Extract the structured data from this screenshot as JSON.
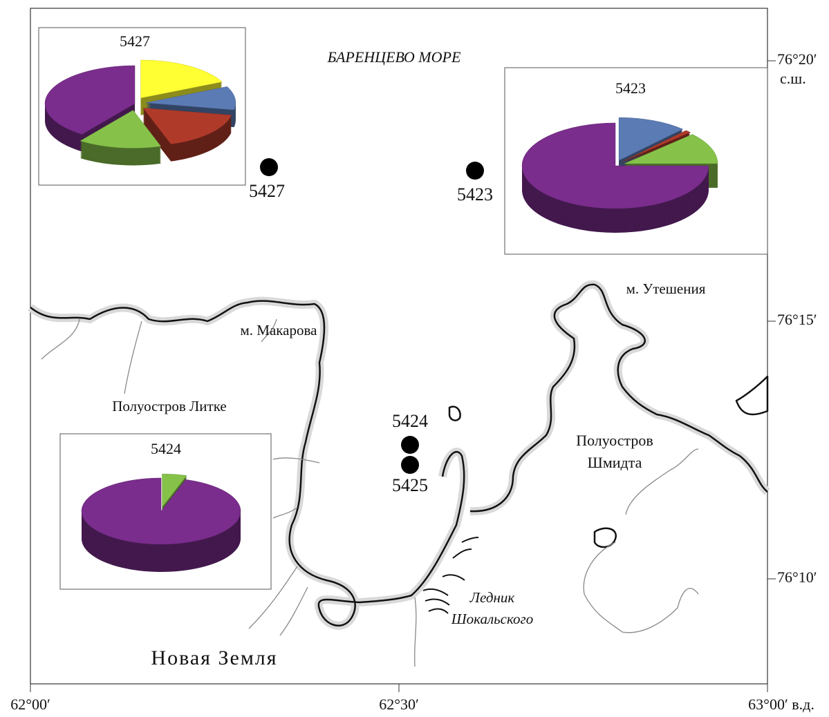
{
  "sea_label": "БАРЕНЦЕВО МОРЕ",
  "region_label": "Новая Земля",
  "place_labels": {
    "cape_makarov": "м. Макарова",
    "litke": "Полуостров Литке",
    "cape_uteshenia": "м. Утешения",
    "schmidt": [
      "Полуостров",
      "Шмидта"
    ],
    "glacier": [
      "Ледник",
      "Шокальского"
    ]
  },
  "longitude_labels": [
    "62°00′",
    "62°30′",
    "63°00′ в.д."
  ],
  "latitude_labels": [
    "76°20′",
    "76°15′",
    "76°10′"
  ],
  "latitude_unit": "с.ш.",
  "stations": [
    "5427",
    "5423",
    "5424",
    "5425"
  ],
  "insets": [
    {
      "station": "5427",
      "values": [
        18,
        10,
        17,
        15,
        40
      ],
      "colors": [
        "#ffff33",
        "#5b7bb5",
        "#b03a2a",
        "#86c24a",
        "#7a2d8c"
      ]
    },
    {
      "station": "5423",
      "values": [
        12,
        1,
        12,
        75
      ],
      "colors": [
        "#5b7bb5",
        "#b03a2a",
        "#86c24a",
        "#7a2d8c"
      ]
    },
    {
      "station": "5424",
      "values": [
        5,
        95
      ],
      "colors": [
        "#86c24a",
        "#7a2d8c"
      ]
    }
  ]
}
